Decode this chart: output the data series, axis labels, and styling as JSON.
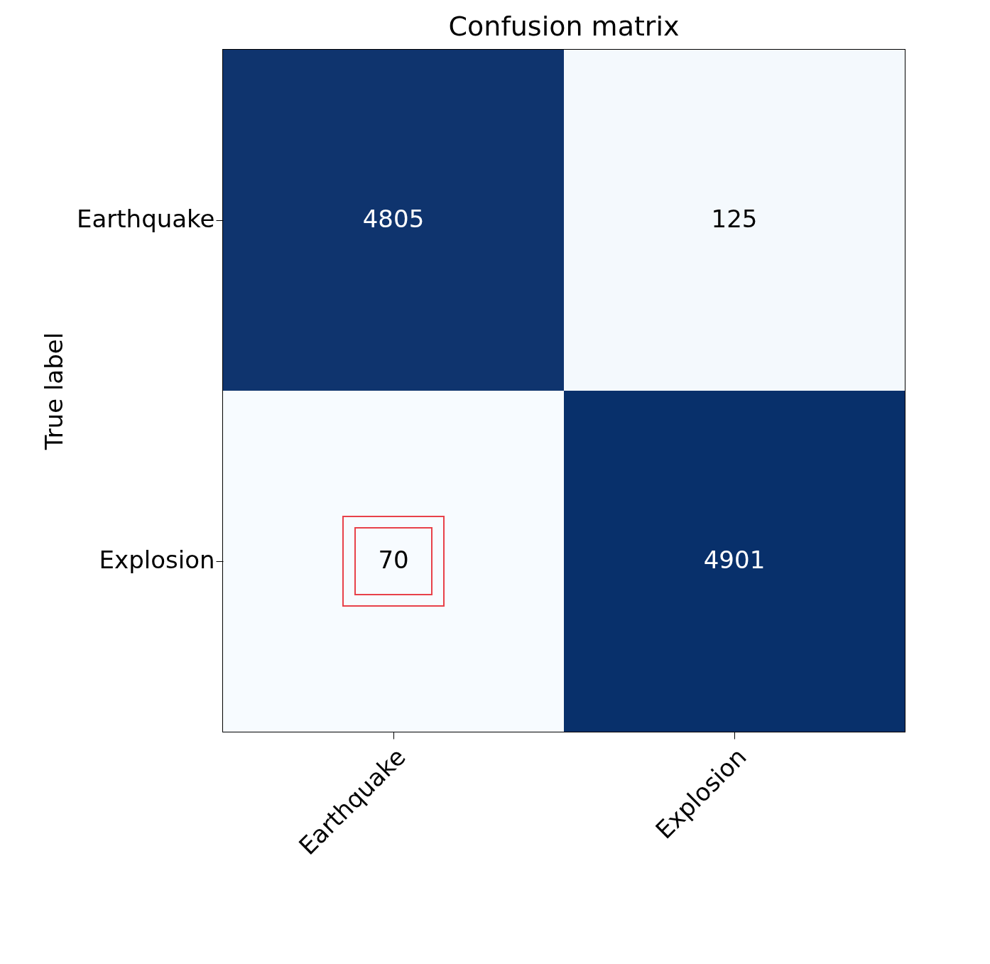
{
  "chart_data": {
    "type": "heatmap",
    "title": "Confusion matrix",
    "ylabel": "True label",
    "categories": [
      "Earthquake",
      "Explosion"
    ],
    "y_categories": [
      "Earthquake",
      "Explosion"
    ],
    "cells": [
      [
        4805,
        125
      ],
      [
        70,
        4901
      ]
    ],
    "colors": [
      "#f7fbff",
      "#08306b"
    ],
    "data_labels": true,
    "grid": false,
    "legend": false
  }
}
